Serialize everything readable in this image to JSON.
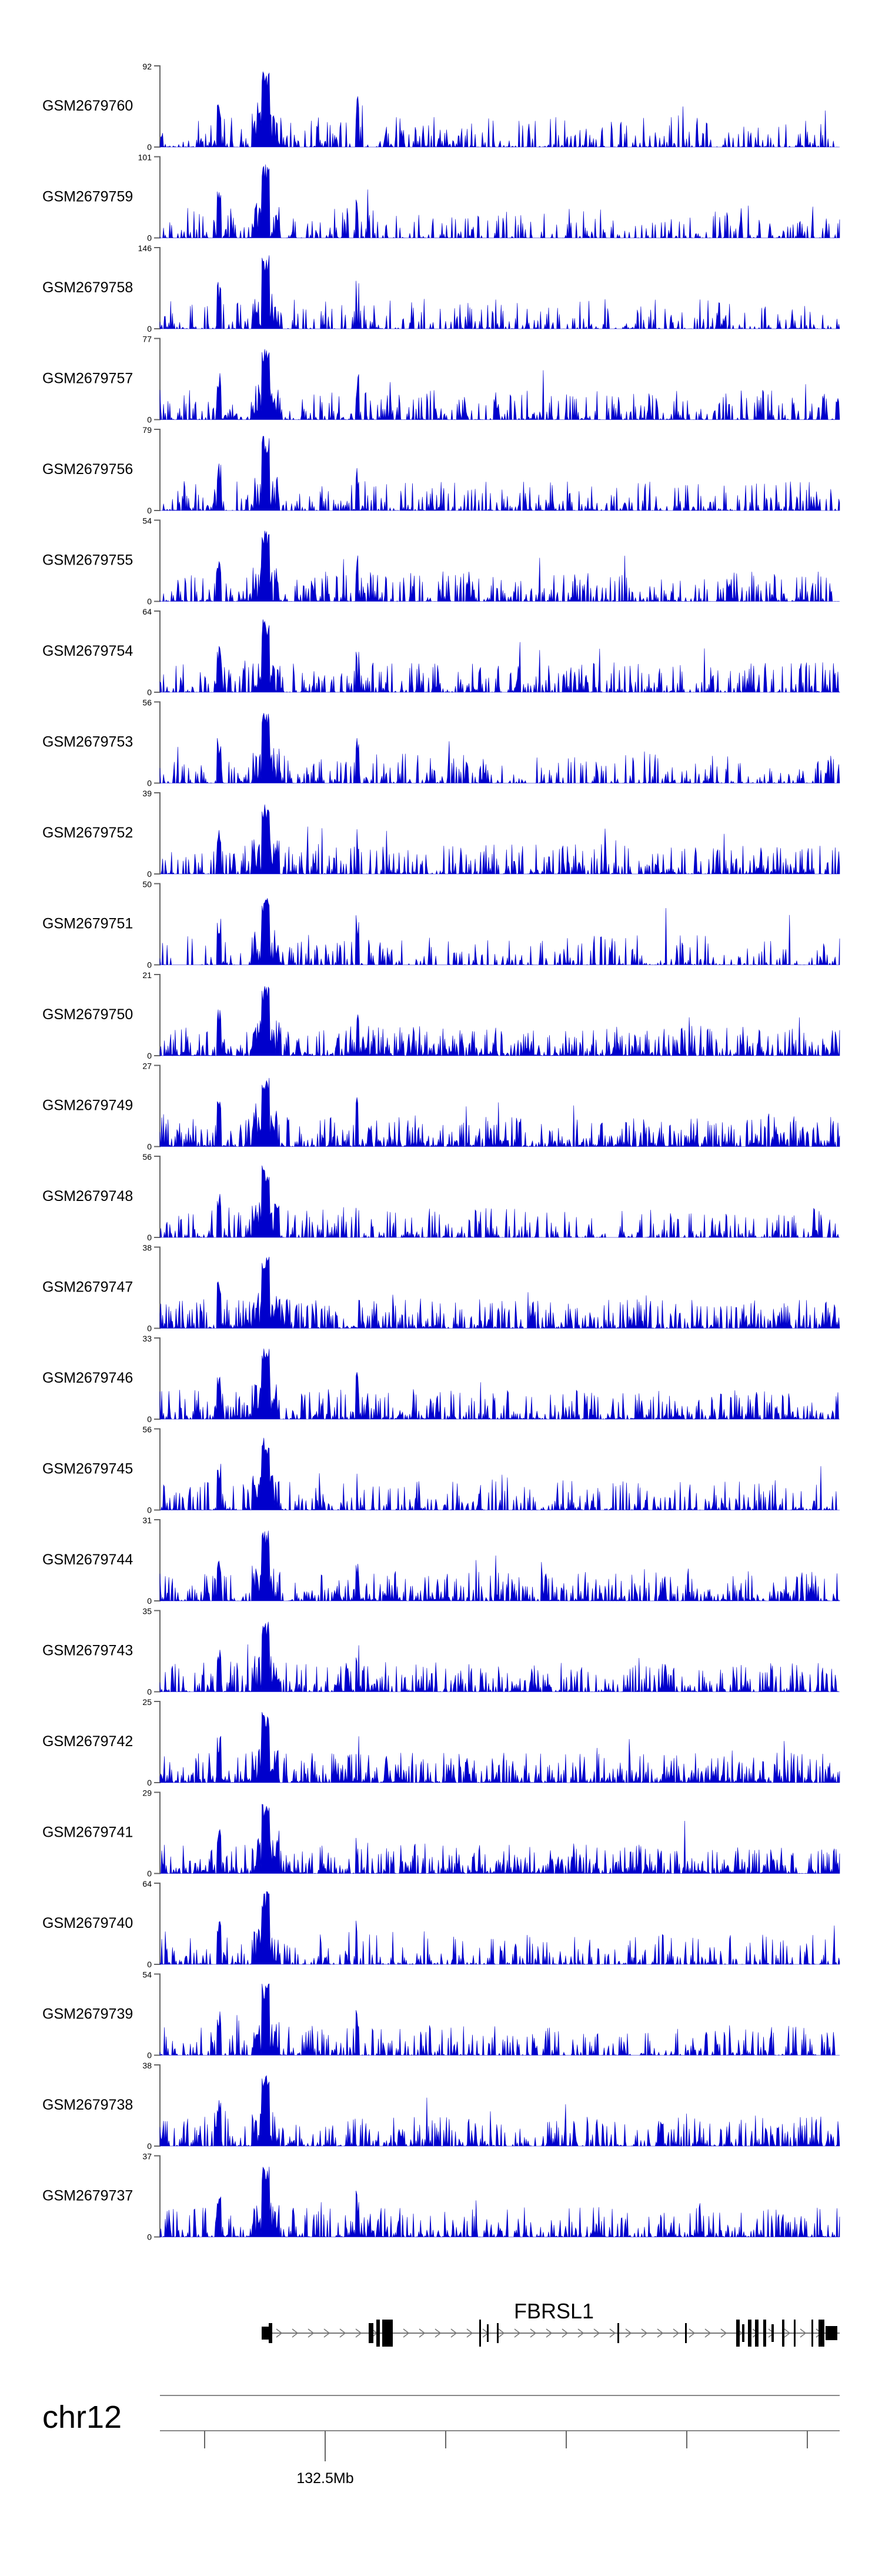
{
  "chart_data": {
    "type": "area",
    "color": "#0000cc",
    "tracks": [
      {
        "name": "GSM2679760",
        "ymax": 92,
        "ymin": 0,
        "peak": 0.965,
        "density": 0.55,
        "seed": 11
      },
      {
        "name": "GSM2679759",
        "ymax": 101,
        "ymin": 0,
        "peak": 0.96,
        "density": 0.5,
        "seed": 23
      },
      {
        "name": "GSM2679758",
        "ymax": 146,
        "ymin": 0,
        "peak": 0.96,
        "density": 0.5,
        "seed": 37
      },
      {
        "name": "GSM2679757",
        "ymax": 77,
        "ymin": 0,
        "peak": 0.96,
        "density": 0.6,
        "seed": 41
      },
      {
        "name": "GSM2679756",
        "ymax": 79,
        "ymin": 0,
        "peak": 0.96,
        "density": 0.6,
        "seed": 53
      },
      {
        "name": "GSM2679755",
        "ymax": 54,
        "ymin": 0,
        "peak": 0.93,
        "density": 0.65,
        "seed": 67
      },
      {
        "name": "GSM2679754",
        "ymax": 64,
        "ymin": 0,
        "peak": 0.93,
        "density": 0.65,
        "seed": 71
      },
      {
        "name": "GSM2679753",
        "ymax": 56,
        "ymin": 0,
        "peak": 0.93,
        "density": 0.6,
        "seed": 83
      },
      {
        "name": "GSM2679752",
        "ymax": 39,
        "ymin": 0,
        "peak": 0.9,
        "density": 0.7,
        "seed": 97
      },
      {
        "name": "GSM2679751",
        "ymax": 50,
        "ymin": 0,
        "peak": 0.85,
        "density": 0.5,
        "seed": 103
      },
      {
        "name": "GSM2679750",
        "ymax": 21,
        "ymin": 0,
        "peak": 0.9,
        "density": 0.95,
        "seed": 113
      },
      {
        "name": "GSM2679749",
        "ymax": 27,
        "ymin": 0,
        "peak": 0.9,
        "density": 0.9,
        "seed": 127
      },
      {
        "name": "GSM2679748",
        "ymax": 56,
        "ymin": 0,
        "peak": 0.93,
        "density": 0.6,
        "seed": 131
      },
      {
        "name": "GSM2679747",
        "ymax": 38,
        "ymin": 0,
        "peak": 0.93,
        "density": 0.8,
        "seed": 149
      },
      {
        "name": "GSM2679746",
        "ymax": 33,
        "ymin": 0,
        "peak": 0.9,
        "density": 0.8,
        "seed": 151
      },
      {
        "name": "GSM2679745",
        "ymax": 56,
        "ymin": 0,
        "peak": 0.93,
        "density": 0.6,
        "seed": 163
      },
      {
        "name": "GSM2679744",
        "ymax": 31,
        "ymin": 0,
        "peak": 0.9,
        "density": 0.8,
        "seed": 173
      },
      {
        "name": "GSM2679743",
        "ymax": 35,
        "ymin": 0,
        "peak": 0.9,
        "density": 0.75,
        "seed": 181
      },
      {
        "name": "GSM2679742",
        "ymax": 25,
        "ymin": 0,
        "peak": 0.9,
        "density": 0.9,
        "seed": 191
      },
      {
        "name": "GSM2679741",
        "ymax": 29,
        "ymin": 0,
        "peak": 0.9,
        "density": 0.9,
        "seed": 197
      },
      {
        "name": "GSM2679740",
        "ymax": 64,
        "ymin": 0,
        "peak": 0.93,
        "density": 0.6,
        "seed": 211
      },
      {
        "name": "GSM2679739",
        "ymax": 54,
        "ymin": 0,
        "peak": 0.93,
        "density": 0.6,
        "seed": 223
      },
      {
        "name": "GSM2679738",
        "ymax": 38,
        "ymin": 0,
        "peak": 0.93,
        "density": 0.75,
        "seed": 227
      },
      {
        "name": "GSM2679737",
        "ymax": 37,
        "ymin": 0,
        "peak": 0.93,
        "density": 0.75,
        "seed": 233
      }
    ],
    "gene": {
      "name": "FBRSL1",
      "strand": "+"
    },
    "chromosome": "chr12",
    "position_label": "132.5Mb"
  }
}
